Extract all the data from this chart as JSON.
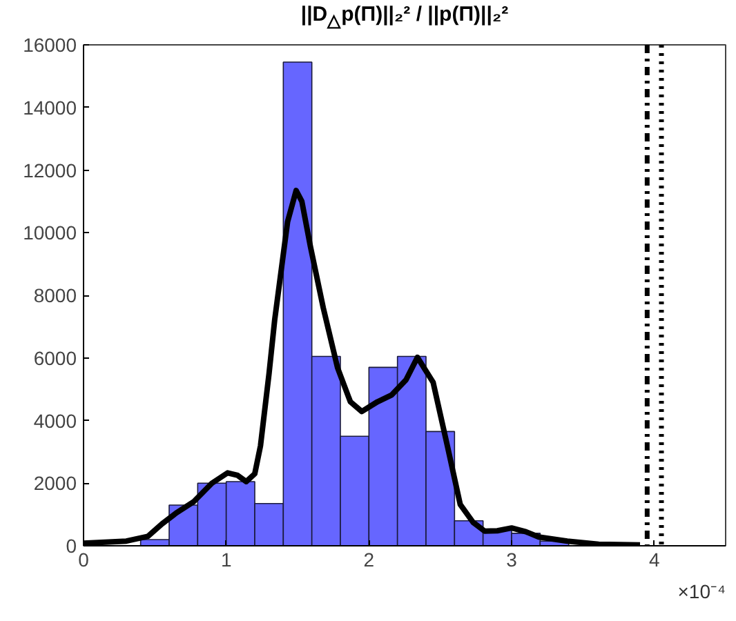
{
  "chart_data": {
    "type": "histogram",
    "title": "||D$_{△}$p(Π)||₂² / ||p(Π)||₂²",
    "bins": [
      0,
      0.2,
      0.4,
      0.6,
      0.8,
      1.0,
      1.2,
      1.4,
      1.6,
      1.8,
      2.0,
      2.2,
      2.4,
      2.6,
      2.8,
      3.0,
      3.2,
      3.4,
      3.6
    ],
    "values": [
      null,
      null,
      200,
      1300,
      2000,
      2050,
      1350,
      15450,
      6050,
      3500,
      5700,
      6050,
      3650,
      800,
      500,
      400,
      150,
      null
    ],
    "color": "#6666ff",
    "series": [
      {
        "type": "line",
        "color": "#000000",
        "x": [
          0,
          0.3,
          0.45,
          0.55,
          0.65,
          0.77,
          0.9,
          1.01,
          1.08,
          1.14,
          1.2,
          1.24,
          1.3,
          1.34,
          1.43,
          1.49,
          1.53,
          1.59,
          1.68,
          1.78,
          1.87,
          1.95,
          2.06,
          2.16,
          2.26,
          2.34,
          2.45,
          2.55,
          2.64,
          2.73,
          2.81,
          2.9,
          3.0,
          3.1,
          3.19,
          3.39,
          3.61,
          3.9
        ],
        "values": [
          80,
          150,
          300,
          700,
          1050,
          1400,
          2000,
          2330,
          2250,
          2050,
          2300,
          3190,
          5500,
          7230,
          10350,
          11350,
          11000,
          9560,
          7600,
          5690,
          4600,
          4290,
          4600,
          4820,
          5300,
          6020,
          5220,
          3190,
          1320,
          750,
          470,
          480,
          570,
          450,
          280,
          150,
          50,
          30
        ]
      }
    ],
    "ref_lines": [
      {
        "axis": "x",
        "value": 3.95,
        "color": "#000000",
        "line_style": "dashdot"
      },
      {
        "axis": "x",
        "value": 4.05,
        "color": "#000000",
        "line_style": "dotted"
      }
    ],
    "xlim": [
      0,
      4.5
    ],
    "xticks": [
      0,
      1,
      2,
      3,
      4
    ],
    "ylim": [
      0,
      16000
    ],
    "yticks": [
      0,
      2000,
      4000,
      6000,
      8000,
      10000,
      12000,
      14000,
      16000
    ],
    "grid": false,
    "annotations": [
      {
        "text": "×10⁻⁴"
      }
    ]
  }
}
